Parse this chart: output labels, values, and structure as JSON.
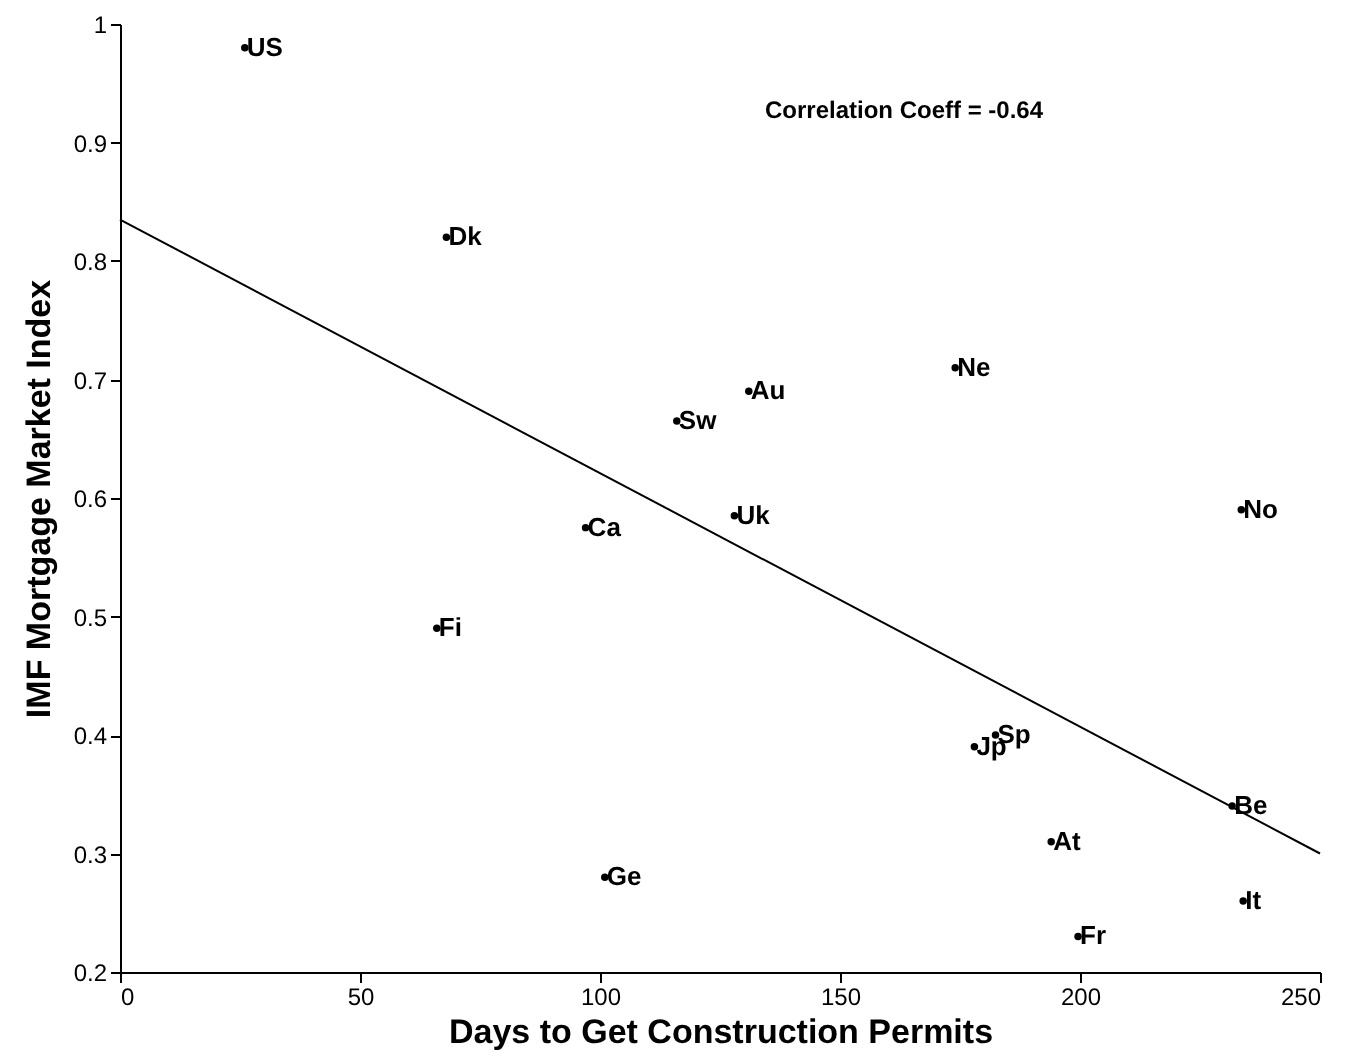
{
  "chart_data": {
    "type": "scatter",
    "xlabel": "Days to Get Construction Permits",
    "ylabel": "IMF Mortgage Market Index",
    "xlim": [
      0,
      250
    ],
    "xticks": [
      0,
      50,
      100,
      150,
      200,
      250
    ],
    "ylim": [
      0.2,
      1
    ],
    "yticks": [
      0.2,
      0.3,
      0.4,
      0.5,
      0.6,
      0.7,
      0.8,
      0.9,
      1
    ],
    "grid": false,
    "marker": "circle",
    "series": [
      {
        "color": "#000000",
        "x": [
          26,
          68,
          131,
          174,
          116,
          128,
          97,
          233.6,
          66,
          101,
          178,
          182.4,
          231.7,
          194,
          234,
          199.6
        ],
        "values": [
          0.98,
          0.82,
          0.69,
          0.71,
          0.665,
          0.585,
          0.575,
          0.59,
          0.49,
          0.28,
          0.39,
          0.4,
          0.34,
          0.31,
          0.26,
          0.23
        ]
      },
      {
        "type": "line",
        "color": "#000000",
        "line_style": "solid",
        "marker": "none",
        "x": [
          0,
          250
        ],
        "values": [
          0.835,
          0.3
        ]
      }
    ],
    "annotations": [
      "Correlation Coeff = -0.64",
      {
        "text": "US",
        "x": 26,
        "y": 0.98
      },
      {
        "text": "Dk",
        "x": 68,
        "y": 0.82
      },
      {
        "text": "Au",
        "x": 131,
        "y": 0.69
      },
      {
        "text": "Ne",
        "x": 174,
        "y": 0.71
      },
      {
        "text": "Sw",
        "x": 116,
        "y": 0.665
      },
      {
        "text": "Uk",
        "x": 128,
        "y": 0.585
      },
      {
        "text": "Ca",
        "x": 97,
        "y": 0.575
      },
      {
        "text": "No",
        "x": 233.6,
        "y": 0.59
      },
      {
        "text": "Fi",
        "x": 66,
        "y": 0.49
      },
      {
        "text": "Ge",
        "x": 101,
        "y": 0.28
      },
      {
        "text": "Jp",
        "x": 178,
        "y": 0.39
      },
      {
        "text": "Sp",
        "x": 182.4,
        "y": 0.4
      },
      {
        "text": "Be",
        "x": 231.7,
        "y": 0.34
      },
      {
        "text": "At",
        "x": 194,
        "y": 0.31
      },
      {
        "text": "It",
        "x": 234,
        "y": 0.26
      },
      {
        "text": "Fr",
        "x": 199.6,
        "y": 0.23
      }
    ]
  }
}
